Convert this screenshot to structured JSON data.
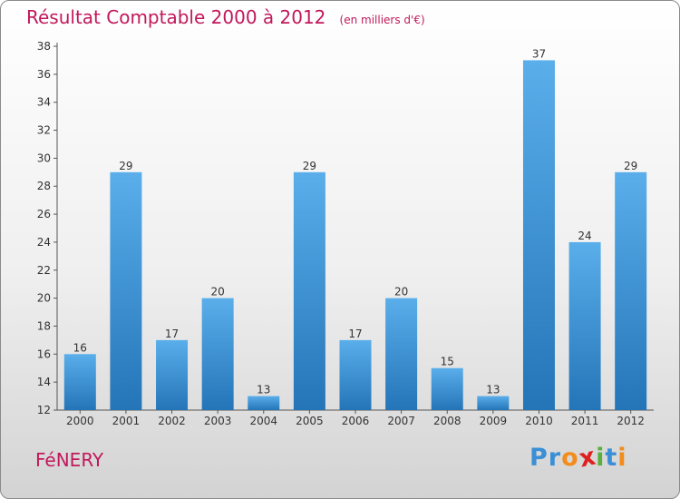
{
  "chart_data": {
    "type": "bar",
    "title": "Résultat Comptable 2000 à 2012",
    "subtitle": "(en milliers d'€)",
    "categories": [
      "2000",
      "2001",
      "2002",
      "2003",
      "2004",
      "2005",
      "2006",
      "2007",
      "2008",
      "2009",
      "2010",
      "2011",
      "2012"
    ],
    "values": [
      16,
      29,
      17,
      20,
      13,
      29,
      17,
      20,
      15,
      13,
      37,
      24,
      29
    ],
    "ylim": [
      12,
      38
    ],
    "ytick_step": 2,
    "xlabel": "",
    "ylabel": "",
    "grid": false
  },
  "footer": {
    "commune": "FéNERY",
    "logo": [
      "P",
      "r",
      "o",
      "x",
      "i",
      "t",
      "i"
    ]
  },
  "colors": {
    "title": "#c2185b",
    "bar_top": "#5aaeea",
    "bar_bottom": "#2475b8",
    "logo": [
      "#3a8fd6",
      "#3a8fd6",
      "#f28c1c",
      "#e02020",
      "#5ab03c",
      "#3a8fd6",
      "#f28c1c"
    ]
  }
}
